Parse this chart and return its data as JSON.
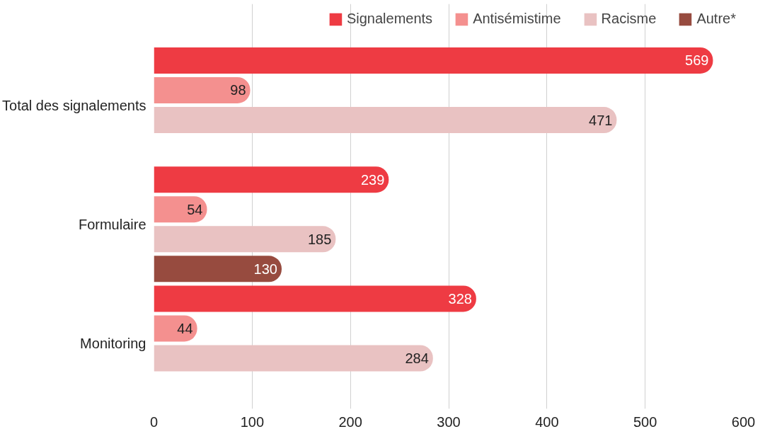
{
  "chart_data": {
    "type": "bar",
    "orientation": "horizontal",
    "categories": [
      "Total des signalements",
      "Formulaire",
      "Monitoring"
    ],
    "series": [
      {
        "name": "Signalements",
        "color": "#ee3b43",
        "values": [
          569,
          239,
          328
        ]
      },
      {
        "name": "Antisémistime",
        "color": "#f4908f",
        "values": [
          98,
          54,
          44
        ]
      },
      {
        "name": "Racisme",
        "color": "#e9c2c2",
        "values": [
          471,
          185,
          284
        ]
      },
      {
        "name": "Autre*",
        "color": "#974b3f",
        "values": [
          null,
          130,
          null
        ]
      }
    ],
    "xlim": [
      0,
      600
    ],
    "xticks": [
      0,
      100,
      200,
      300,
      400,
      500,
      600
    ],
    "grid": "x",
    "legend": "top",
    "data_labels": true
  }
}
